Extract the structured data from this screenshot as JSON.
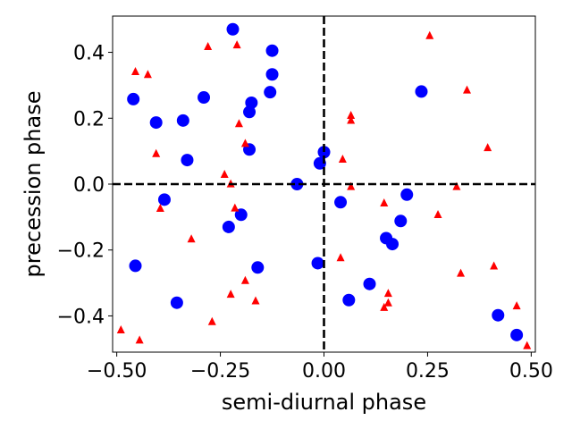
{
  "chart_data": {
    "type": "scatter",
    "title": "",
    "xlabel": "semi-diurnal phase",
    "ylabel": "precession phase",
    "xlim": [
      -0.51,
      0.51
    ],
    "ylim": [
      -0.51,
      0.51
    ],
    "xticks": [
      -0.5,
      -0.25,
      0.0,
      0.25,
      0.5
    ],
    "xtick_labels": [
      "−0.50",
      "−0.25",
      "0.00",
      "0.25",
      "0.50"
    ],
    "yticks": [
      -0.4,
      -0.2,
      0.0,
      0.2,
      0.4
    ],
    "ytick_labels": [
      "−0.4",
      "−0.2",
      "0.0",
      "0.2",
      "0.4"
    ],
    "grid": false,
    "legend": "none",
    "reference_lines": {
      "x": 0.0,
      "y": 0.0,
      "style": "dashed",
      "color": "#000000"
    },
    "series": [
      {
        "marker": "circle",
        "color": "#0000ff",
        "points": [
          [
            -0.22,
            0.47
          ],
          [
            -0.125,
            0.405
          ],
          [
            -0.125,
            0.333
          ],
          [
            -0.46,
            0.258
          ],
          [
            -0.29,
            0.263
          ],
          [
            -0.175,
            0.247
          ],
          [
            -0.13,
            0.279
          ],
          [
            0.235,
            0.281
          ],
          [
            -0.18,
            0.219
          ],
          [
            -0.405,
            0.187
          ],
          [
            -0.34,
            0.193
          ],
          [
            -0.33,
            0.073
          ],
          [
            -0.18,
            0.105
          ],
          [
            0.0,
            0.097
          ],
          [
            -0.01,
            0.063
          ],
          [
            -0.065,
            0.0
          ],
          [
            -0.385,
            -0.047
          ],
          [
            0.2,
            -0.032
          ],
          [
            0.04,
            -0.055
          ],
          [
            -0.2,
            -0.093
          ],
          [
            -0.23,
            -0.13
          ],
          [
            0.185,
            -0.112
          ],
          [
            0.15,
            -0.164
          ],
          [
            0.165,
            -0.182
          ],
          [
            -0.455,
            -0.248
          ],
          [
            -0.16,
            -0.253
          ],
          [
            -0.015,
            -0.24
          ],
          [
            0.11,
            -0.303
          ],
          [
            -0.355,
            -0.36
          ],
          [
            0.06,
            -0.352
          ],
          [
            0.42,
            -0.398
          ],
          [
            0.465,
            -0.458
          ]
        ]
      },
      {
        "marker": "triangle",
        "color": "#ff0000",
        "points": [
          [
            -0.455,
            0.342
          ],
          [
            -0.425,
            0.333
          ],
          [
            -0.28,
            0.418
          ],
          [
            -0.21,
            0.423
          ],
          [
            0.255,
            0.451
          ],
          [
            0.345,
            0.286
          ],
          [
            -0.205,
            0.184
          ],
          [
            0.065,
            0.209
          ],
          [
            0.065,
            0.194
          ],
          [
            -0.19,
            0.124
          ],
          [
            -0.405,
            0.093
          ],
          [
            0.045,
            0.076
          ],
          [
            0.395,
            0.111
          ],
          [
            -0.24,
            0.03
          ],
          [
            -0.225,
            0.001
          ],
          [
            0.065,
            -0.007
          ],
          [
            0.32,
            -0.007
          ],
          [
            -0.395,
            -0.073
          ],
          [
            -0.215,
            -0.072
          ],
          [
            0.145,
            -0.057
          ],
          [
            0.275,
            -0.092
          ],
          [
            -0.32,
            -0.166
          ],
          [
            0.04,
            -0.223
          ],
          [
            0.41,
            -0.248
          ],
          [
            0.33,
            -0.27
          ],
          [
            -0.19,
            -0.292
          ],
          [
            -0.225,
            -0.334
          ],
          [
            0.155,
            -0.331
          ],
          [
            0.155,
            -0.36
          ],
          [
            0.145,
            -0.374
          ],
          [
            -0.165,
            -0.354
          ],
          [
            0.465,
            -0.369
          ],
          [
            -0.27,
            -0.417
          ],
          [
            -0.49,
            -0.442
          ],
          [
            -0.445,
            -0.473
          ],
          [
            0.49,
            -0.49
          ]
        ]
      }
    ]
  }
}
